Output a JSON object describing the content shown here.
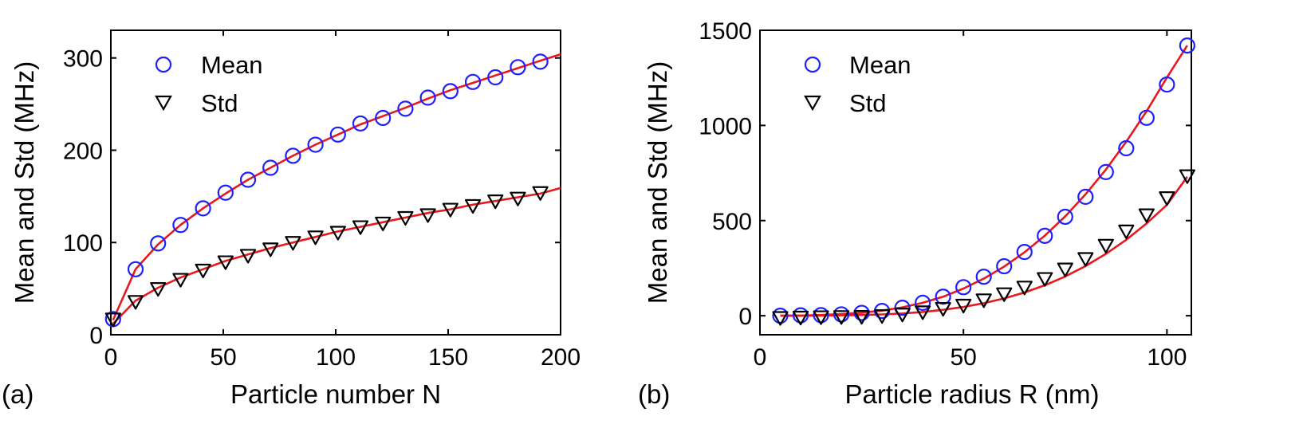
{
  "colors": {
    "mean_marker": "#1f1fff",
    "std_marker": "#000000",
    "fit_line": "#e8191e",
    "axis": "#000000"
  },
  "chart_data": [
    {
      "type": "scatter",
      "panel_label": "(a)",
      "xlabel": "Particle number N",
      "ylabel": "Mean and Std (MHz)",
      "xlim": [
        0,
        200
      ],
      "ylim": [
        0,
        330
      ],
      "xticks": [
        0,
        50,
        100,
        150,
        200
      ],
      "yticks": [
        0,
        100,
        200,
        300
      ],
      "grid": false,
      "legend_position": "top-left",
      "series": [
        {
          "name": "Mean",
          "marker": "circle",
          "x": [
            1,
            11,
            21,
            31,
            41,
            51,
            61,
            71,
            81,
            91,
            101,
            111,
            121,
            131,
            141,
            151,
            161,
            171,
            181,
            191
          ],
          "y": [
            17,
            71,
            99,
            119,
            137,
            154,
            168,
            181,
            194,
            206,
            217,
            229,
            235,
            245,
            257,
            264,
            274,
            279,
            290,
            296
          ]
        },
        {
          "name": "Std",
          "marker": "triangle-down",
          "x": [
            1,
            11,
            21,
            31,
            41,
            51,
            61,
            71,
            81,
            91,
            101,
            111,
            121,
            131,
            141,
            151,
            161,
            171,
            181,
            191
          ],
          "y": [
            17,
            36,
            50,
            60,
            70,
            79,
            86,
            93,
            100,
            106,
            111,
            117,
            121,
            127,
            130,
            136,
            140,
            145,
            148,
            154
          ]
        }
      ],
      "fits": [
        {
          "name": "Mean fit",
          "x": [
            1,
            11,
            21,
            31,
            41,
            51,
            61,
            71,
            81,
            91,
            101,
            111,
            121,
            131,
            141,
            151,
            161,
            171,
            181,
            191,
            200
          ],
          "y": [
            16,
            71,
            98,
            119,
            137,
            153,
            168,
            181,
            194,
            206,
            217,
            228,
            237,
            246,
            256,
            265,
            273,
            281,
            289,
            297,
            304
          ]
        },
        {
          "name": "Std fit",
          "x": [
            1,
            11,
            21,
            31,
            41,
            51,
            61,
            71,
            81,
            91,
            101,
            111,
            121,
            131,
            141,
            151,
            161,
            171,
            181,
            191,
            200
          ],
          "y": [
            12,
            37,
            51,
            62,
            71,
            80,
            87,
            94,
            100,
            106,
            112,
            117,
            122,
            127,
            132,
            136,
            141,
            145,
            149,
            153,
            159
          ]
        }
      ]
    },
    {
      "type": "scatter",
      "panel_label": "(b)",
      "xlabel": "Particle radius R  (nm)",
      "ylabel": "Mean and Std (MHz)",
      "xlim": [
        0,
        106
      ],
      "ylim": [
        -100,
        1500
      ],
      "xticks": [
        0,
        50,
        100
      ],
      "yticks": [
        0,
        500,
        1000,
        1500
      ],
      "grid": false,
      "legend_position": "top-left",
      "series": [
        {
          "name": "Mean",
          "marker": "circle",
          "x": [
            5,
            10,
            15,
            20,
            25,
            30,
            35,
            40,
            45,
            50,
            55,
            60,
            65,
            70,
            75,
            80,
            85,
            90,
            95,
            100,
            105
          ],
          "y": [
            0,
            2,
            3,
            7,
            15,
            25,
            42,
            68,
            100,
            150,
            205,
            260,
            335,
            420,
            520,
            625,
            755,
            880,
            1040,
            1215,
            1420
          ]
        },
        {
          "name": "Std",
          "marker": "triangle-down",
          "x": [
            5,
            10,
            15,
            20,
            25,
            30,
            35,
            40,
            45,
            50,
            55,
            60,
            65,
            70,
            75,
            80,
            85,
            90,
            95,
            100,
            105
          ],
          "y": [
            -10,
            -8,
            -6,
            -5,
            -4,
            0,
            8,
            20,
            38,
            55,
            83,
            115,
            150,
            195,
            245,
            300,
            370,
            445,
            530,
            620,
            735
          ]
        }
      ],
      "fits": [
        {
          "name": "Mean fit",
          "x": [
            5,
            10,
            15,
            20,
            25,
            30,
            35,
            40,
            45,
            50,
            55,
            60,
            65,
            70,
            75,
            80,
            85,
            90,
            95,
            100,
            105
          ],
          "y": [
            0,
            1,
            4,
            9,
            16,
            27,
            44,
            68,
            100,
            143,
            195,
            258,
            333,
            421,
            522,
            638,
            768,
            914,
            1075,
            1252,
            1420
          ]
        },
        {
          "name": "Std fit",
          "x": [
            5,
            10,
            15,
            20,
            25,
            30,
            35,
            40,
            45,
            50,
            55,
            60,
            65,
            70,
            75,
            80,
            85,
            90,
            95,
            100,
            105
          ],
          "y": [
            0,
            0,
            1,
            2,
            4,
            7,
            12,
            20,
            31,
            46,
            66,
            91,
            122,
            160,
            206,
            261,
            325,
            399,
            485,
            583,
            730
          ]
        }
      ]
    }
  ]
}
